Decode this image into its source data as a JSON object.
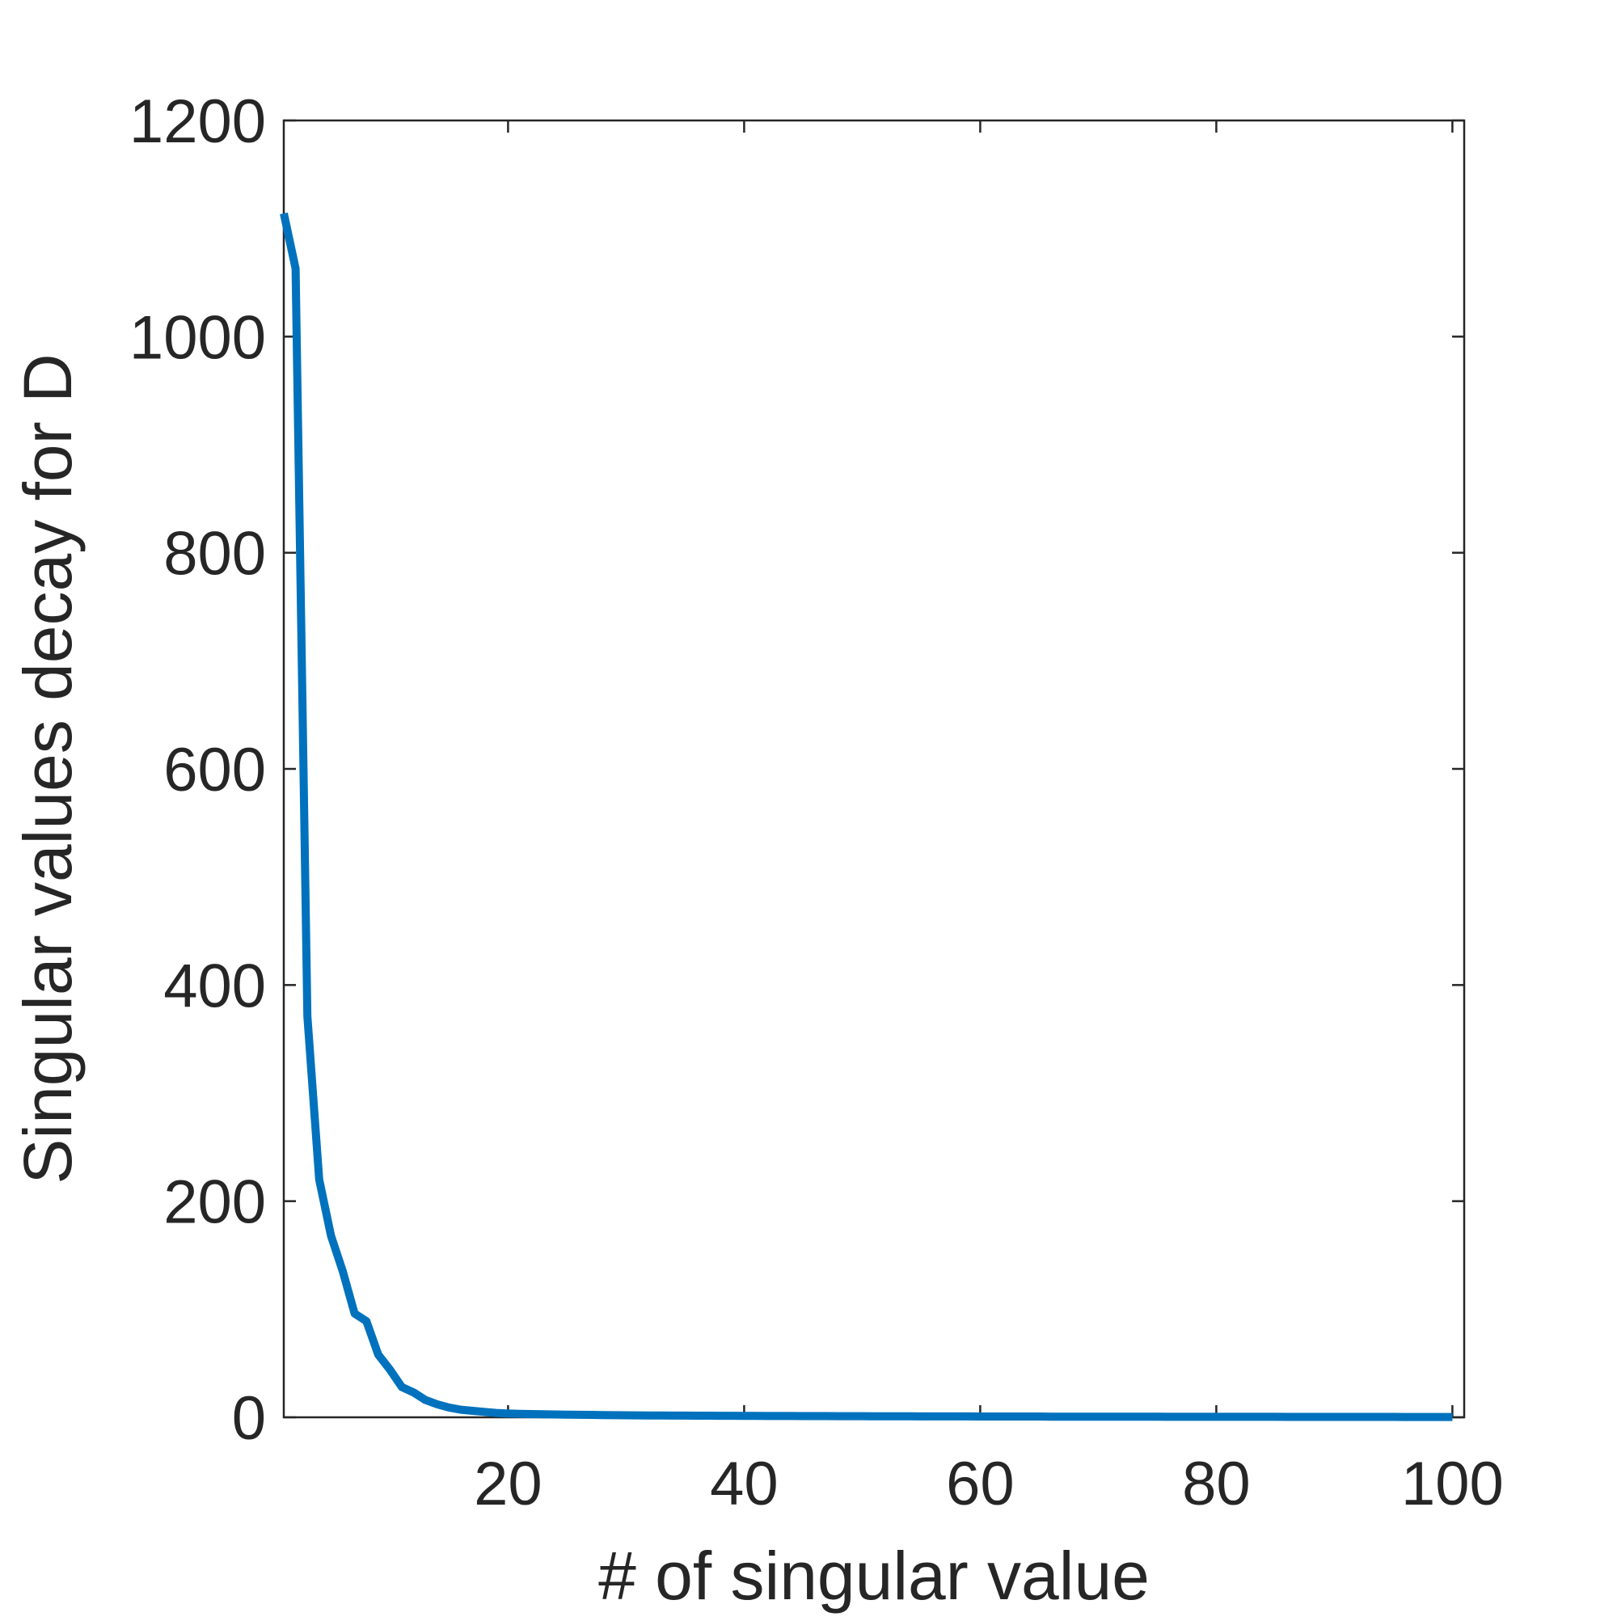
{
  "chart_data": {
    "type": "line",
    "xlabel": "# of singular value",
    "ylabel": "Singular values decay for D",
    "x": [
      1,
      2,
      3,
      4,
      5,
      6,
      7,
      8,
      9,
      10,
      11,
      12,
      13,
      14,
      15,
      16,
      17,
      18,
      19,
      20,
      21,
      22,
      23,
      24,
      25,
      26,
      27,
      28,
      29,
      30,
      31,
      32,
      33,
      34,
      35,
      36,
      37,
      38,
      39,
      40,
      41,
      42,
      43,
      44,
      45,
      46,
      47,
      48,
      49,
      50,
      51,
      52,
      53,
      54,
      55,
      56,
      57,
      58,
      59,
      60,
      61,
      62,
      63,
      64,
      65,
      66,
      67,
      68,
      69,
      70,
      71,
      72,
      73,
      74,
      75,
      76,
      77,
      78,
      79,
      80,
      81,
      82,
      83,
      84,
      85,
      86,
      87,
      88,
      89,
      90,
      91,
      92,
      93,
      94,
      95,
      96,
      97,
      98,
      99,
      100
    ],
    "series": [
      {
        "name": "singular values",
        "color": "#0072BD",
        "values": [
          1114,
          1063,
          371,
          220,
          168,
          135,
          96,
          89,
          58,
          44,
          28,
          23,
          16,
          12,
          9,
          7,
          6,
          5,
          4,
          3.5,
          3.2,
          3,
          2.8,
          2.6,
          2.4,
          2.3,
          2.2,
          2.1,
          2,
          1.9,
          1.8,
          1.7,
          1.7,
          1.6,
          1.6,
          1.5,
          1.5,
          1.4,
          1.4,
          1.3,
          1.3,
          1.2,
          1.2,
          1.2,
          1.1,
          1.1,
          1.1,
          1,
          1,
          1,
          0.9,
          0.9,
          0.9,
          0.9,
          0.8,
          0.8,
          0.8,
          0.8,
          0.8,
          0.7,
          0.7,
          0.7,
          0.7,
          0.7,
          0.7,
          0.6,
          0.6,
          0.6,
          0.6,
          0.6,
          0.6,
          0.6,
          0.6,
          0.6,
          0.6,
          0.5,
          0.5,
          0.5,
          0.5,
          0.5,
          0.5,
          0.5,
          0.5,
          0.5,
          0.5,
          0.4,
          0.4,
          0.4,
          0.4,
          0.4,
          0.4,
          0.4,
          0.4,
          0.4,
          0.4,
          0.3,
          0.3,
          0.3,
          0.3,
          0.3
        ]
      }
    ],
    "xlim": [
      1,
      101
    ],
    "ylim": [
      0,
      1200
    ],
    "xticks": [
      20,
      40,
      60,
      80,
      100
    ],
    "yticks": [
      0,
      200,
      400,
      600,
      800,
      1000,
      1200
    ],
    "grid": false
  }
}
